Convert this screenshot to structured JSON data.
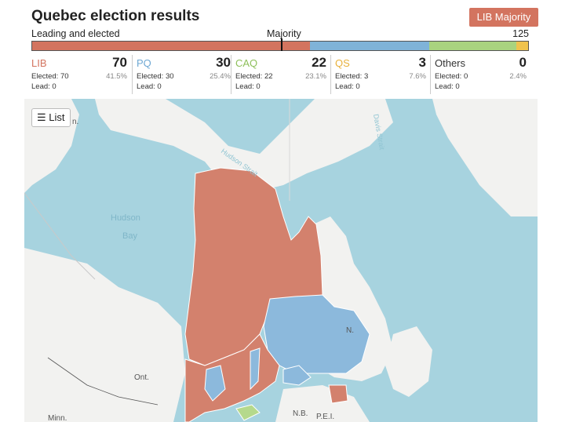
{
  "header": {
    "title": "Quebec election results",
    "badge": "LIB Majority",
    "leading_label": "Leading and elected",
    "majority_label": "Majority",
    "majority_number": "125"
  },
  "bar": {
    "segments": [
      {
        "party": "LIB",
        "fraction": 0.56,
        "color": "#d3745f"
      },
      {
        "party": "PQ",
        "fraction": 0.24,
        "color": "#7fb3d8"
      },
      {
        "party": "CAQ",
        "fraction": 0.176,
        "color": "#a9d37f"
      },
      {
        "party": "QS",
        "fraction": 0.024,
        "color": "#f0c34e"
      }
    ]
  },
  "parties": [
    {
      "name": "LIB",
      "seats": "70",
      "elected": "Elected: 70",
      "lead": "Lead: 0",
      "pct": "41.5%",
      "color": "#d3745f"
    },
    {
      "name": "PQ",
      "seats": "30",
      "elected": "Elected: 30",
      "lead": "Lead: 0",
      "pct": "25.4%",
      "color": "#6ea8d3"
    },
    {
      "name": "CAQ",
      "seats": "22",
      "elected": "Elected: 22",
      "lead": "Lead: 0",
      "pct": "23.1%",
      "color": "#8dbf5a"
    },
    {
      "name": "QS",
      "seats": "3",
      "elected": "Elected: 3",
      "lead": "Lead: 0",
      "pct": "7.6%",
      "color": "#e8b13c"
    },
    {
      "name": "Others",
      "seats": "0",
      "elected": "Elected: 0",
      "lead": "Lead: 0",
      "pct": "2.4%",
      "color": "#333333"
    }
  ],
  "list_button": {
    "icon": "list-icon",
    "label": "List"
  },
  "map_labels": {
    "hudson": "Hudson",
    "bay": "Bay",
    "strait": "Hudson Strait",
    "davis": "Davis Strait",
    "ont": "Ont.",
    "minn": "Minn.",
    "nb": "N.B.",
    "pei": "P.E.I.",
    "nl": "N.",
    "n_left": "n."
  }
}
